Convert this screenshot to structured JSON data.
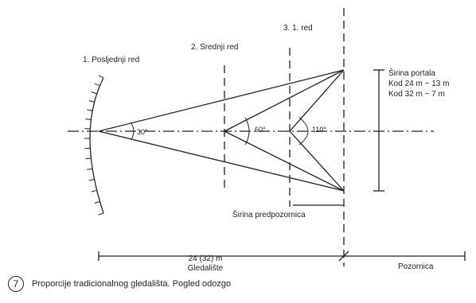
{
  "labels": {
    "row_last": "1. Posljednji red",
    "row_middle": "2. Srednji red",
    "row_first": "3. 1. red",
    "portal_title": "Širina portala",
    "portal_24": "Kod 24 m ~ 13 m",
    "portal_32": "Kod 32 m ~ 7 m",
    "angle_30": "30°",
    "angle_60": "60°",
    "angle_110": "110°",
    "proscenium_width": "Širina predpozornica",
    "auditorium_depth": "24 (32) m",
    "auditorium_name": "Gledalište",
    "stage": "Pozornica"
  },
  "caption": {
    "number": "7",
    "text": "Proporcije tradicionalnog gledališta. Pogled odozgo"
  }
}
